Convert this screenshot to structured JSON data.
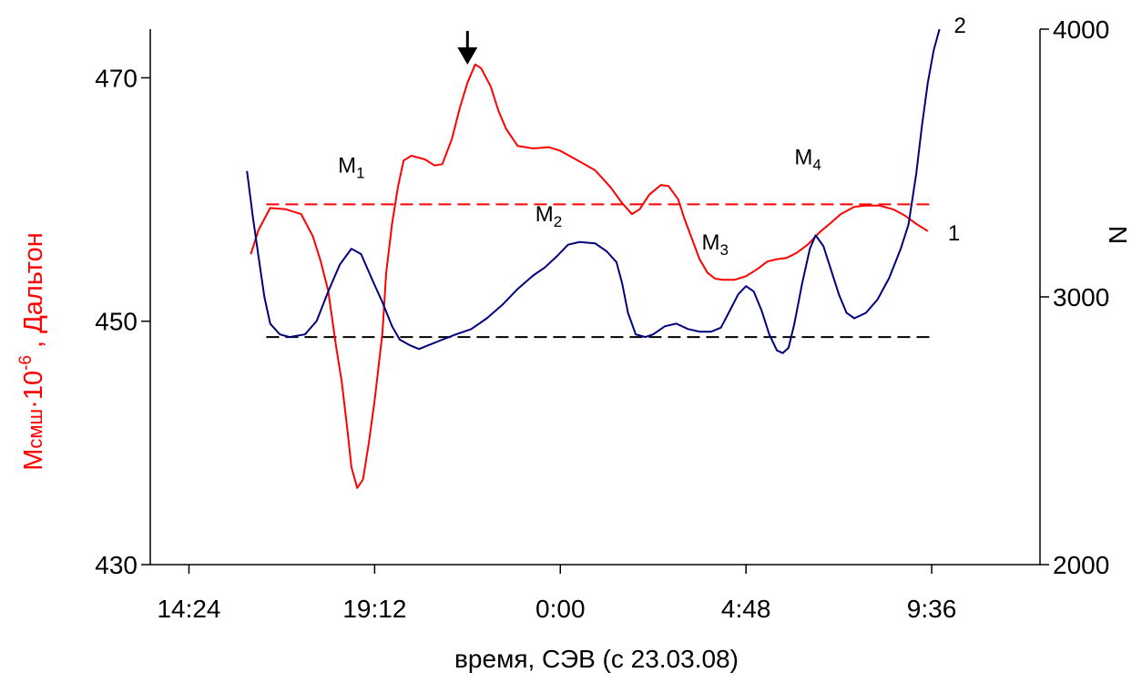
{
  "chart_data": {
    "type": "line",
    "xlabel": "время, СЭВ (с 23.03.08)",
    "ylabel_left_main": "M",
    "ylabel_left_sub": "смш",
    "ylabel_left_mult": "·10",
    "ylabel_left_exp": "-6",
    "ylabel_left_tail": " , Дальтон",
    "ylabel_right": "N",
    "x_ticks": [
      "14:24",
      "19:12",
      "0:00",
      "4:48",
      "9:36"
    ],
    "y_left_ticks": [
      "430",
      "450",
      "470"
    ],
    "y_right_ticks": [
      "2000",
      "3000",
      "4000"
    ],
    "y_left_lim": [
      430,
      474
    ],
    "y_right_lim": [
      2000,
      4000
    ],
    "x_hours_lim": [
      -1,
      22
    ],
    "x_tick_hours": [
      0,
      4.8,
      9.6,
      14.4,
      19.2
    ],
    "annotations": {
      "arrow_hour": 7.2,
      "curve1_label": "1",
      "curve2_label": "2",
      "M1": {
        "main": "M",
        "sub": "1",
        "hour": 4.2,
        "left_value": 462.2
      },
      "M2": {
        "main": "M",
        "sub": "2",
        "hour": 9.3,
        "left_value": 458.2
      },
      "M3": {
        "main": "M",
        "sub": "3",
        "hour": 13.6,
        "left_value": 455.9
      },
      "M4": {
        "main": "M",
        "sub": "4",
        "hour": 16.0,
        "left_value": 462.9
      }
    },
    "reference_lines": [
      {
        "name": "red-dashed",
        "axis": "left",
        "value": 459.6,
        "from_hour": 2.0,
        "to_hour": 19.2,
        "color": "#ff0000"
      },
      {
        "name": "black-dashed",
        "axis": "right",
        "value": 2850,
        "from_hour": 2.0,
        "to_hour": 19.2,
        "color": "#000000"
      }
    ],
    "series": [
      {
        "label": "1",
        "axis": "left",
        "color": "#ff0000",
        "points": [
          [
            1.6,
            455.5
          ],
          [
            1.8,
            457.5
          ],
          [
            2.1,
            459.3
          ],
          [
            2.5,
            459.2
          ],
          [
            2.9,
            458.8
          ],
          [
            3.2,
            457.0
          ],
          [
            3.4,
            455.0
          ],
          [
            3.6,
            452.5
          ],
          [
            3.8,
            448.0
          ],
          [
            3.95,
            445.0
          ],
          [
            4.1,
            441.0
          ],
          [
            4.2,
            438.0
          ],
          [
            4.35,
            436.3
          ],
          [
            4.5,
            437.0
          ],
          [
            4.65,
            440.0
          ],
          [
            4.8,
            443.5
          ],
          [
            5.0,
            449.0
          ],
          [
            5.1,
            454.0
          ],
          [
            5.25,
            458.0
          ],
          [
            5.4,
            461.0
          ],
          [
            5.55,
            463.2
          ],
          [
            5.75,
            463.6
          ],
          [
            6.1,
            463.3
          ],
          [
            6.35,
            462.8
          ],
          [
            6.55,
            462.9
          ],
          [
            6.8,
            465.0
          ],
          [
            7.0,
            467.5
          ],
          [
            7.2,
            469.6
          ],
          [
            7.4,
            471.1
          ],
          [
            7.55,
            470.8
          ],
          [
            7.8,
            469.3
          ],
          [
            8.0,
            467.3
          ],
          [
            8.2,
            465.8
          ],
          [
            8.5,
            464.4
          ],
          [
            8.9,
            464.2
          ],
          [
            9.3,
            464.3
          ],
          [
            9.6,
            464.0
          ],
          [
            10.0,
            463.3
          ],
          [
            10.5,
            462.4
          ],
          [
            10.9,
            461.0
          ],
          [
            11.2,
            459.7
          ],
          [
            11.45,
            458.8
          ],
          [
            11.65,
            459.2
          ],
          [
            11.9,
            460.4
          ],
          [
            12.2,
            461.2
          ],
          [
            12.4,
            461.1
          ],
          [
            12.65,
            460.0
          ],
          [
            12.8,
            458.5
          ],
          [
            13.0,
            456.8
          ],
          [
            13.2,
            455.1
          ],
          [
            13.4,
            454.0
          ],
          [
            13.6,
            453.5
          ],
          [
            13.8,
            453.4
          ],
          [
            14.1,
            453.4
          ],
          [
            14.4,
            453.7
          ],
          [
            14.7,
            454.3
          ],
          [
            14.95,
            454.9
          ],
          [
            15.2,
            455.1
          ],
          [
            15.45,
            455.2
          ],
          [
            15.7,
            455.6
          ],
          [
            16.0,
            456.3
          ],
          [
            16.3,
            457.3
          ],
          [
            16.6,
            458.1
          ],
          [
            16.85,
            458.8
          ],
          [
            17.2,
            459.4
          ],
          [
            17.5,
            459.5
          ],
          [
            17.85,
            459.5
          ],
          [
            18.2,
            459.2
          ],
          [
            18.5,
            458.7
          ],
          [
            18.8,
            458.0
          ],
          [
            19.1,
            457.4
          ]
        ]
      },
      {
        "label": "2",
        "axis": "right",
        "color": "#00007f",
        "points": [
          [
            1.5,
            3470
          ],
          [
            1.65,
            3300
          ],
          [
            1.8,
            3150
          ],
          [
            1.95,
            3000
          ],
          [
            2.1,
            2900
          ],
          [
            2.35,
            2860
          ],
          [
            2.6,
            2850
          ],
          [
            3.0,
            2860
          ],
          [
            3.3,
            2910
          ],
          [
            3.6,
            3020
          ],
          [
            3.9,
            3120
          ],
          [
            4.2,
            3180
          ],
          [
            4.45,
            3160
          ],
          [
            4.75,
            3060
          ],
          [
            5.0,
            2980
          ],
          [
            5.25,
            2890
          ],
          [
            5.45,
            2840
          ],
          [
            5.7,
            2820
          ],
          [
            5.95,
            2805
          ],
          [
            6.2,
            2820
          ],
          [
            6.55,
            2840
          ],
          [
            6.9,
            2860
          ],
          [
            7.3,
            2880
          ],
          [
            7.7,
            2920
          ],
          [
            8.1,
            2970
          ],
          [
            8.5,
            3030
          ],
          [
            8.9,
            3080
          ],
          [
            9.2,
            3110
          ],
          [
            9.5,
            3150
          ],
          [
            9.8,
            3195
          ],
          [
            10.1,
            3205
          ],
          [
            10.5,
            3200
          ],
          [
            10.8,
            3170
          ],
          [
            11.05,
            3130
          ],
          [
            11.2,
            3050
          ],
          [
            11.35,
            2940
          ],
          [
            11.55,
            2860
          ],
          [
            11.8,
            2850
          ],
          [
            12.0,
            2860
          ],
          [
            12.3,
            2890
          ],
          [
            12.6,
            2900
          ],
          [
            12.9,
            2880
          ],
          [
            13.2,
            2870
          ],
          [
            13.5,
            2870
          ],
          [
            13.75,
            2885
          ],
          [
            13.95,
            2940
          ],
          [
            14.2,
            3010
          ],
          [
            14.4,
            3040
          ],
          [
            14.6,
            3020
          ],
          [
            14.8,
            2950
          ],
          [
            15.0,
            2860
          ],
          [
            15.2,
            2800
          ],
          [
            15.35,
            2790
          ],
          [
            15.5,
            2810
          ],
          [
            15.65,
            2900
          ],
          [
            15.85,
            3050
          ],
          [
            16.05,
            3180
          ],
          [
            16.2,
            3230
          ],
          [
            16.4,
            3190
          ],
          [
            16.6,
            3100
          ],
          [
            16.8,
            3010
          ],
          [
            17.0,
            2940
          ],
          [
            17.2,
            2920
          ],
          [
            17.5,
            2940
          ],
          [
            17.8,
            2990
          ],
          [
            18.1,
            3070
          ],
          [
            18.4,
            3180
          ],
          [
            18.6,
            3270
          ],
          [
            18.8,
            3460
          ],
          [
            18.95,
            3640
          ],
          [
            19.1,
            3800
          ],
          [
            19.25,
            3920
          ],
          [
            19.4,
            4000
          ]
        ]
      }
    ]
  }
}
